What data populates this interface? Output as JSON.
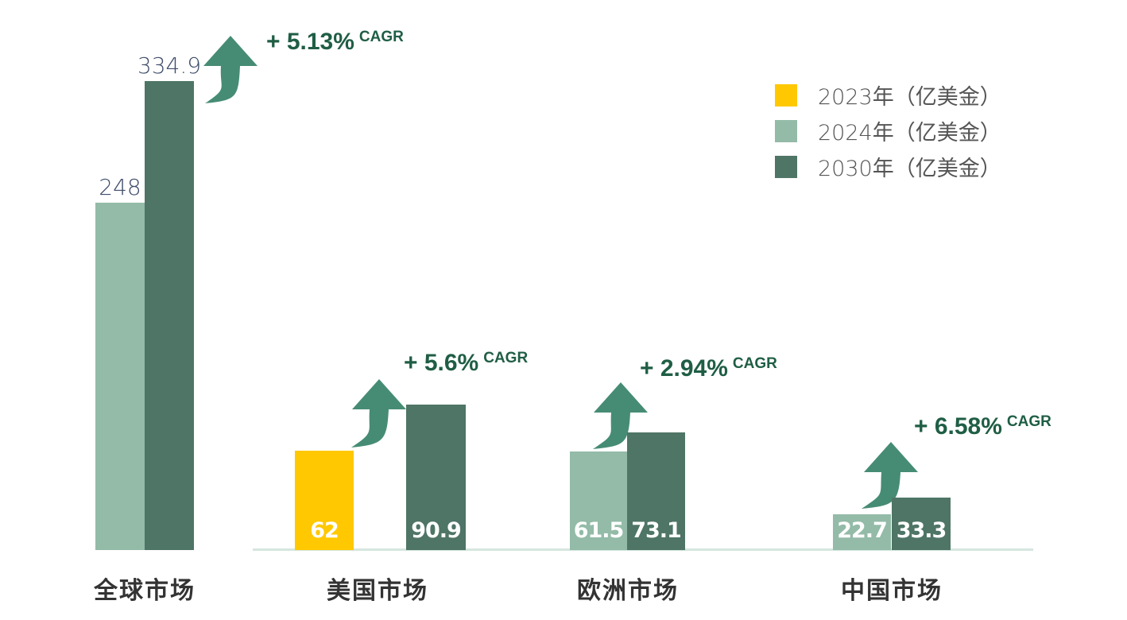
{
  "chart_data": {
    "type": "bar",
    "title": "",
    "xlabel": "",
    "ylabel": "",
    "categories": [
      "全球市场",
      "美国市场",
      "欧洲市场",
      "中国市场"
    ],
    "legend_position": "top-right",
    "grid": false,
    "series_legend": [
      {
        "name": "2023年（亿美金）",
        "color": "#ffc800"
      },
      {
        "name": "2024年（亿美金）",
        "color": "#93bba8"
      },
      {
        "name": "2030年（亿美金）",
        "color": "#4e7566"
      }
    ],
    "groups": [
      {
        "category": "全球市场",
        "bars": [
          {
            "series": "2024年（亿美金）",
            "value": 248,
            "label": "248"
          },
          {
            "series": "2030年（亿美金）",
            "value": 334.9,
            "label": "334.9"
          }
        ],
        "cagr": "+ 5.13%",
        "cagr_unit": "CAGR"
      },
      {
        "category": "美国市场",
        "bars": [
          {
            "series": "2023年（亿美金）",
            "value": 62,
            "label": "62"
          },
          {
            "series": "2030年（亿美金）",
            "value": 90.9,
            "label": "90.9"
          }
        ],
        "cagr": "+ 5.6%",
        "cagr_unit": "CAGR"
      },
      {
        "category": "欧洲市场",
        "bars": [
          {
            "series": "2024年（亿美金）",
            "value": 61.5,
            "label": "61.5"
          },
          {
            "series": "2030年（亿美金）",
            "value": 73.1,
            "label": "73.1"
          }
        ],
        "cagr": "+ 2.94%",
        "cagr_unit": "CAGR"
      },
      {
        "category": "中国市场",
        "bars": [
          {
            "series": "2024年（亿美金）",
            "value": 22.7,
            "label": "22.7"
          },
          {
            "series": "2030年（亿美金）",
            "value": 33.3,
            "label": "33.3"
          }
        ],
        "cagr": "+ 6.58%",
        "cagr_unit": "CAGR"
      }
    ],
    "arrow_color": "#468c74"
  }
}
